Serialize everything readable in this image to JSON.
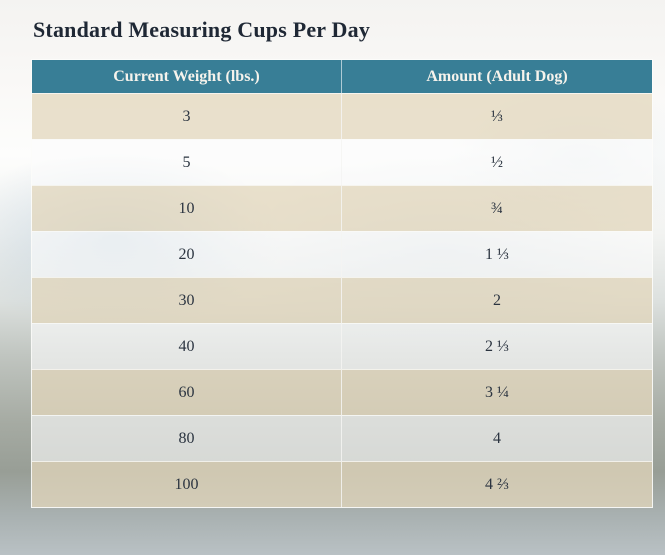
{
  "page": {
    "title": "Standard Measuring Cups Per Day"
  },
  "table": {
    "columns": [
      {
        "label": "Current Weight (lbs.)"
      },
      {
        "label": "Amount (Adult Dog)"
      }
    ],
    "rows": [
      {
        "weight": "3",
        "amount": "⅓"
      },
      {
        "weight": "5",
        "amount": "½"
      },
      {
        "weight": "10",
        "amount": "¾"
      },
      {
        "weight": "20",
        "amount": "1 ⅓"
      },
      {
        "weight": "30",
        "amount": "2"
      },
      {
        "weight": "40",
        "amount": "2 ⅓"
      },
      {
        "weight": "60",
        "amount": "3 ¼"
      },
      {
        "weight": "80",
        "amount": "4"
      },
      {
        "weight": "100",
        "amount": "4 ⅔"
      }
    ]
  },
  "chart_data": {
    "type": "table",
    "title": "Standard Measuring Cups Per Day",
    "columns": [
      "Current Weight (lbs.)",
      "Amount (Adult Dog)"
    ],
    "rows": [
      [
        "3",
        "⅓"
      ],
      [
        "5",
        "½"
      ],
      [
        "10",
        "¾"
      ],
      [
        "20",
        "1 ⅓"
      ],
      [
        "30",
        "2"
      ],
      [
        "40",
        "2 ⅓"
      ],
      [
        "60",
        "3 ¼"
      ],
      [
        "80",
        "4"
      ],
      [
        "100",
        "4 ⅔"
      ]
    ],
    "weights_lbs": [
      3,
      5,
      10,
      20,
      30,
      40,
      60,
      80,
      100
    ],
    "cups_per_day": [
      0.333,
      0.5,
      0.75,
      1.333,
      2,
      2.333,
      3.25,
      4,
      4.667
    ]
  },
  "colors": {
    "header_bg": "#387e96",
    "header_text": "#f6f3ec",
    "row_tan": "#e6ddca",
    "row_light": "#fafafa",
    "cell_text": "#2b3440",
    "title_text": "#1f2835",
    "page_bg_top": "#f4f3f1",
    "page_bg_bottom": "#b9c1c4"
  }
}
